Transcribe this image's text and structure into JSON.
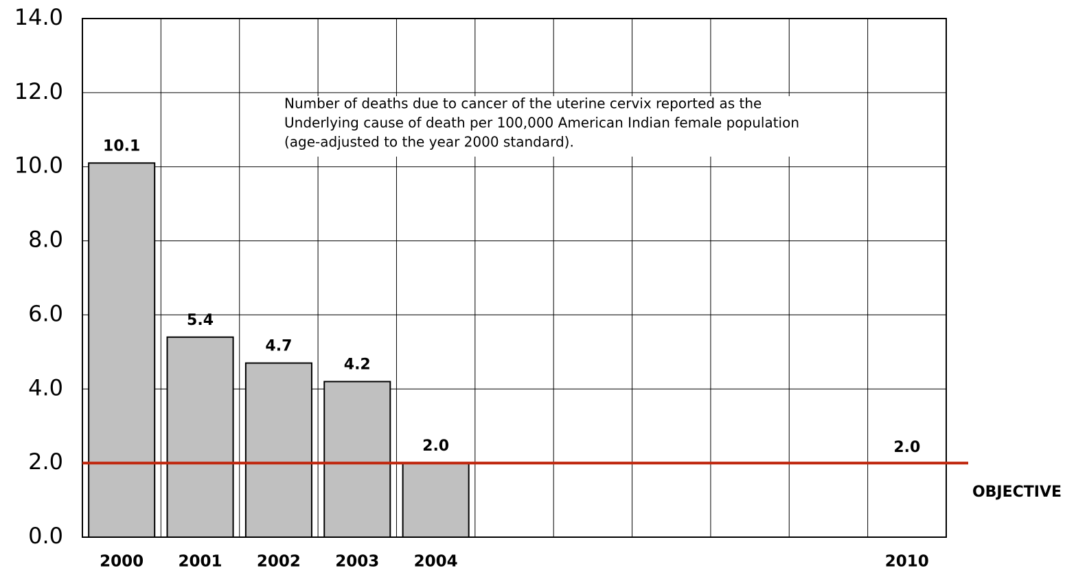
{
  "chart_data": {
    "type": "bar",
    "annotation": [
      "Number of deaths due to cancer of the uterine cervix reported as the",
      "Underlying cause of death per 100,000 American Indian female population",
      "(age-adjusted to the year 2000 standard)."
    ],
    "categories": [
      "2000",
      "2001",
      "2002",
      "2003",
      "2004",
      null,
      null,
      null,
      null,
      null,
      "2010"
    ],
    "values": [
      10.1,
      5.4,
      4.7,
      4.2,
      2.0,
      null,
      null,
      null,
      null,
      null,
      null
    ],
    "value_labels": [
      "10.1",
      "5.4",
      "4.7",
      "4.2",
      "2.0",
      null,
      null,
      null,
      null,
      null,
      null
    ],
    "color": "#c0c0c0",
    "objective": {
      "label": "OBJECTIVE",
      "value": 2.0,
      "value_label": "2.0",
      "color": "#c0280f"
    },
    "ylim": [
      0,
      14
    ],
    "yticks": [
      {
        "value": 0,
        "label": "0.0"
      },
      {
        "value": 2,
        "label": "2.0"
      },
      {
        "value": 4,
        "label": "4.0"
      },
      {
        "value": 6,
        "label": "6.0"
      },
      {
        "value": 8,
        "label": "8.0"
      },
      {
        "value": 10,
        "label": "10.0"
      },
      {
        "value": 12,
        "label": "12.0"
      },
      {
        "value": 14,
        "label": "14.0"
      }
    ],
    "grid": true
  }
}
